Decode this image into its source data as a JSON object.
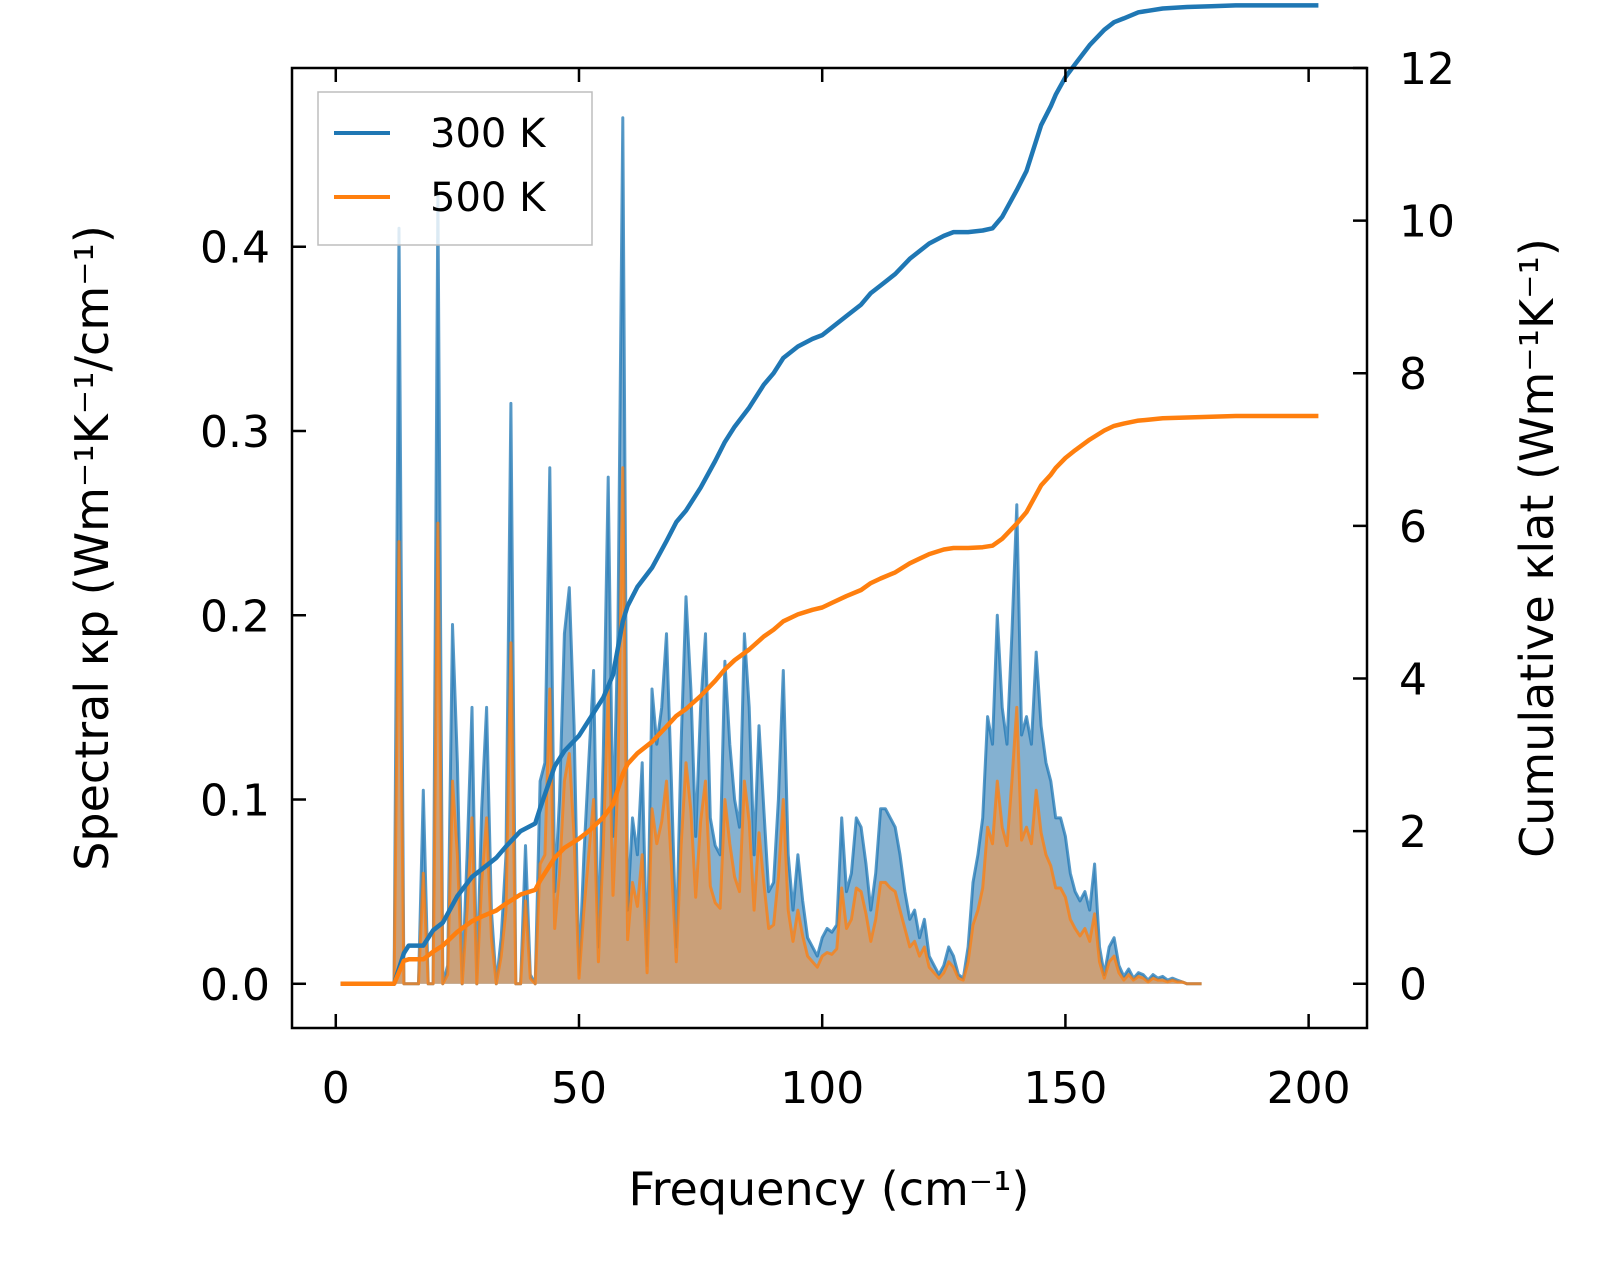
{
  "chart_data": {
    "type": "line",
    "xlabel": "Frequency (cm⁻¹)",
    "ylabel_left": "Spectral κp (Wm⁻¹K⁻¹/cm⁻¹)",
    "ylabel_right": "Cumulative κlat (Wm⁻¹K⁻¹)",
    "xlim": [
      -9,
      212
    ],
    "ylim_left": [
      -0.024,
      0.497
    ],
    "ylim_right": [
      -0.58,
      12.0
    ],
    "x_ticks": [
      0,
      50,
      100,
      150,
      200
    ],
    "y_ticks_left": [
      0.0,
      0.1,
      0.2,
      0.3,
      0.4
    ],
    "y_ticks_left_labels": [
      "0.0",
      "0.1",
      "0.2",
      "0.3",
      "0.4"
    ],
    "y_ticks_right": [
      0,
      2,
      4,
      6,
      8,
      10,
      12
    ],
    "legend": {
      "position": "top-left",
      "entries": [
        "300 K",
        "500 K"
      ]
    },
    "colors": {
      "300K": "#1f77b4",
      "500K": "#ff7f0e",
      "fill300": "#6fa3c9",
      "fill500": "#cd9f74"
    },
    "spectral": {
      "x": [
        1,
        12,
        13,
        14,
        15,
        17,
        18,
        19,
        20,
        21,
        22,
        23,
        24,
        25,
        26,
        27,
        28,
        29,
        30,
        31,
        32,
        33,
        34,
        35,
        36,
        37,
        38,
        39,
        40,
        41,
        42,
        43,
        44,
        45,
        46,
        47,
        48,
        49,
        50,
        51,
        52,
        53,
        54,
        55,
        56,
        57,
        58,
        59,
        60,
        61,
        62,
        63,
        64,
        65,
        66,
        67,
        68,
        69,
        70,
        71,
        72,
        73,
        74,
        75,
        76,
        77,
        78,
        79,
        80,
        81,
        82,
        83,
        84,
        85,
        86,
        87,
        88,
        89,
        90,
        91,
        92,
        93,
        94,
        95,
        96,
        97,
        98,
        99,
        100,
        101,
        102,
        103,
        104,
        105,
        106,
        107,
        108,
        109,
        110,
        111,
        112,
        113,
        114,
        115,
        116,
        117,
        118,
        119,
        120,
        121,
        122,
        123,
        124,
        125,
        126,
        127,
        128,
        129,
        130,
        131,
        132,
        133,
        134,
        135,
        136,
        137,
        138,
        139,
        140,
        141,
        142,
        143,
        144,
        145,
        146,
        147,
        148,
        149,
        150,
        151,
        152,
        153,
        154,
        155,
        156,
        157,
        158,
        159,
        160,
        161,
        162,
        163,
        164,
        165,
        166,
        167,
        168,
        169,
        170,
        171,
        172,
        173,
        174,
        175,
        176,
        177,
        178,
        179,
        180,
        181,
        182,
        183,
        184,
        185,
        186,
        187,
        188,
        189,
        190,
        195,
        200,
        202
      ],
      "k300": [
        0,
        0,
        0.41,
        0,
        0,
        0,
        0.105,
        0,
        0,
        0.43,
        0,
        0.01,
        0.195,
        0.12,
        0,
        0.07,
        0.15,
        0,
        0.095,
        0.15,
        0.04,
        0,
        0.025,
        0.07,
        0.315,
        0,
        0,
        0.075,
        0.005,
        0,
        0.11,
        0.12,
        0.28,
        0.05,
        0.1,
        0.19,
        0.215,
        0.14,
        0.005,
        0.07,
        0.12,
        0.17,
        0.02,
        0.125,
        0.275,
        0.08,
        0.19,
        0.47,
        0.04,
        0.09,
        0.07,
        0.12,
        0.01,
        0.16,
        0.13,
        0.15,
        0.19,
        0.11,
        0.02,
        0.13,
        0.21,
        0.16,
        0.08,
        0.15,
        0.19,
        0.09,
        0.075,
        0.07,
        0.175,
        0.13,
        0.1,
        0.085,
        0.19,
        0.15,
        0.07,
        0.14,
        0.095,
        0.05,
        0.055,
        0.1,
        0.17,
        0.07,
        0.04,
        0.07,
        0.045,
        0.025,
        0.02,
        0.015,
        0.025,
        0.03,
        0.028,
        0.032,
        0.09,
        0.05,
        0.06,
        0.09,
        0.085,
        0.065,
        0.04,
        0.06,
        0.095,
        0.095,
        0.09,
        0.085,
        0.07,
        0.05,
        0.035,
        0.04,
        0.025,
        0.035,
        0.015,
        0.01,
        0.005,
        0.01,
        0.02,
        0.015,
        0.005,
        0.003,
        0.02,
        0.055,
        0.07,
        0.09,
        0.145,
        0.13,
        0.2,
        0.15,
        0.13,
        0.19,
        0.26,
        0.135,
        0.145,
        0.13,
        0.18,
        0.14,
        0.12,
        0.11,
        0.09,
        0.09,
        0.08,
        0.06,
        0.05,
        0.045,
        0.05,
        0.04,
        0.065,
        0.02,
        0.005,
        0.02,
        0.025,
        0.01,
        0.004,
        0.008,
        0.003,
        0.006,
        0.005,
        0.002,
        0.005,
        0.003,
        0.004,
        0.002,
        0.003,
        0.002,
        0.001,
        0,
        0,
        0,
        0
      ],
      "k500": [
        0,
        0,
        0.24,
        0,
        0,
        0,
        0.06,
        0,
        0,
        0.25,
        0,
        0.005,
        0.11,
        0.07,
        0,
        0.04,
        0.09,
        0,
        0.055,
        0.09,
        0.025,
        0,
        0.015,
        0.04,
        0.185,
        0,
        0,
        0.045,
        0.003,
        0,
        0.065,
        0.07,
        0.16,
        0.03,
        0.06,
        0.11,
        0.125,
        0.08,
        0.003,
        0.04,
        0.07,
        0.1,
        0.012,
        0.075,
        0.16,
        0.048,
        0.11,
        0.28,
        0.024,
        0.055,
        0.042,
        0.07,
        0.006,
        0.095,
        0.076,
        0.088,
        0.11,
        0.065,
        0.012,
        0.075,
        0.12,
        0.094,
        0.047,
        0.088,
        0.11,
        0.053,
        0.044,
        0.041,
        0.1,
        0.076,
        0.058,
        0.05,
        0.11,
        0.088,
        0.04,
        0.082,
        0.055,
        0.03,
        0.032,
        0.058,
        0.1,
        0.04,
        0.023,
        0.04,
        0.026,
        0.015,
        0.012,
        0.009,
        0.015,
        0.017,
        0.016,
        0.019,
        0.052,
        0.03,
        0.035,
        0.052,
        0.05,
        0.038,
        0.023,
        0.035,
        0.055,
        0.055,
        0.052,
        0.05,
        0.04,
        0.03,
        0.02,
        0.023,
        0.015,
        0.02,
        0.009,
        0.006,
        0.003,
        0.006,
        0.012,
        0.009,
        0.003,
        0.002,
        0.012,
        0.032,
        0.04,
        0.052,
        0.085,
        0.076,
        0.11,
        0.085,
        0.075,
        0.11,
        0.15,
        0.078,
        0.085,
        0.076,
        0.105,
        0.082,
        0.07,
        0.064,
        0.052,
        0.052,
        0.047,
        0.035,
        0.03,
        0.026,
        0.03,
        0.023,
        0.038,
        0.012,
        0.003,
        0.012,
        0.015,
        0.006,
        0.002,
        0.005,
        0.002,
        0.004,
        0.003,
        0.001,
        0.003,
        0.002,
        0.002,
        0.001,
        0.002,
        0.001,
        0.001,
        0,
        0,
        0,
        0
      ]
    },
    "cumulative": {
      "x": [
        1,
        12,
        14,
        15,
        18,
        20,
        22,
        25,
        28,
        30,
        33,
        35,
        38,
        41,
        42,
        45,
        47,
        50,
        52,
        55,
        57,
        59,
        60,
        62,
        65,
        68,
        70,
        72,
        75,
        78,
        80,
        82,
        85,
        88,
        90,
        92,
        95,
        98,
        100,
        102,
        105,
        108,
        110,
        112,
        115,
        118,
        120,
        122,
        125,
        127,
        130,
        133,
        135,
        137,
        140,
        142,
        145,
        147,
        148,
        150,
        152,
        155,
        158,
        160,
        162,
        165,
        167,
        170,
        175,
        180,
        185,
        190,
        202
      ],
      "c300": [
        0,
        0,
        0.4,
        0.5,
        0.5,
        0.7,
        0.8,
        1.15,
        1.4,
        1.5,
        1.65,
        1.8,
        2.0,
        2.1,
        2.3,
        2.85,
        3.05,
        3.25,
        3.45,
        3.75,
        4.05,
        4.75,
        4.95,
        5.2,
        5.45,
        5.8,
        6.05,
        6.2,
        6.5,
        6.85,
        7.1,
        7.3,
        7.55,
        7.85,
        8.0,
        8.2,
        8.35,
        8.45,
        8.5,
        8.6,
        8.75,
        8.9,
        9.05,
        9.15,
        9.3,
        9.5,
        9.6,
        9.7,
        9.8,
        9.85,
        9.85,
        9.87,
        9.9,
        10.05,
        10.4,
        10.65,
        11.25,
        11.5,
        11.65,
        11.88,
        12.05,
        12.3,
        12.5,
        12.6,
        12.65,
        12.73,
        12.75,
        12.78,
        12.8,
        12.81,
        12.82,
        12.82,
        12.82
      ],
      "c500": [
        0,
        0,
        0.3,
        0.32,
        0.32,
        0.42,
        0.5,
        0.68,
        0.82,
        0.88,
        0.96,
        1.05,
        1.17,
        1.23,
        1.35,
        1.65,
        1.78,
        1.9,
        2.0,
        2.18,
        2.35,
        2.75,
        2.88,
        3.02,
        3.17,
        3.37,
        3.51,
        3.6,
        3.77,
        3.97,
        4.12,
        4.24,
        4.38,
        4.55,
        4.64,
        4.75,
        4.84,
        4.9,
        4.93,
        4.99,
        5.08,
        5.16,
        5.25,
        5.31,
        5.39,
        5.51,
        5.57,
        5.63,
        5.69,
        5.71,
        5.71,
        5.72,
        5.74,
        5.83,
        6.03,
        6.18,
        6.53,
        6.67,
        6.76,
        6.89,
        6.99,
        7.13,
        7.25,
        7.31,
        7.34,
        7.38,
        7.39,
        7.41,
        7.42,
        7.43,
        7.44,
        7.44,
        7.44
      ]
    }
  }
}
